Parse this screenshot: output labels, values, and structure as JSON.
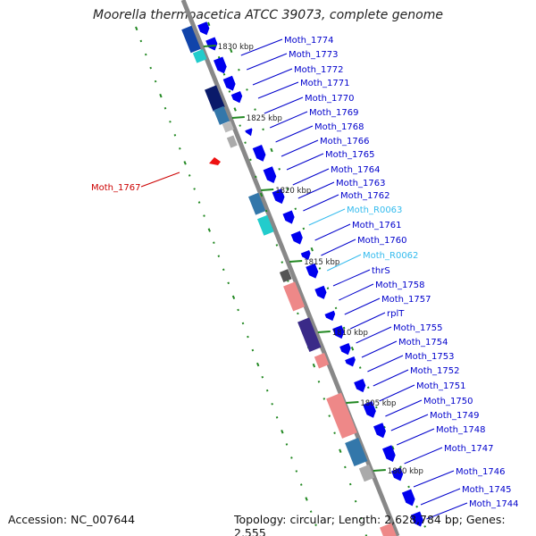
{
  "title": "Moorella thermoacetica ATCC 39073, complete genome",
  "footer": {
    "accession": "Accession: NC_007644",
    "topology": "Topology: circular; Length: 2,628,784 bp; Genes: 2,555"
  },
  "colors": {
    "label": "#0000cc",
    "rna_label": "#33bbee",
    "highlight_label": "#cc0000",
    "cds": "#0000ee",
    "green_marks": "#228822",
    "backbone": "#888888"
  },
  "kbp_markers": [
    "1830 kbp",
    "1825 kbp",
    "1820 kbp",
    "1815 kbp",
    "1810 kbp",
    "1805 kbp",
    "1800 kbp"
  ],
  "gene_labels": [
    {
      "text": "Moth_1774",
      "type": "cds"
    },
    {
      "text": "Moth_1773",
      "type": "cds"
    },
    {
      "text": "Moth_1772",
      "type": "cds"
    },
    {
      "text": "Moth_1771",
      "type": "cds"
    },
    {
      "text": "Moth_1770",
      "type": "cds"
    },
    {
      "text": "Moth_1769",
      "type": "cds"
    },
    {
      "text": "Moth_1768",
      "type": "cds"
    },
    {
      "text": "Moth_1766",
      "type": "cds"
    },
    {
      "text": "Moth_1765",
      "type": "cds"
    },
    {
      "text": "Moth_1764",
      "type": "cds"
    },
    {
      "text": "Moth_1763",
      "type": "cds"
    },
    {
      "text": "Moth_1762",
      "type": "cds"
    },
    {
      "text": "Moth_R0063",
      "type": "rna"
    },
    {
      "text": "Moth_1761",
      "type": "cds"
    },
    {
      "text": "Moth_1760",
      "type": "cds"
    },
    {
      "text": "Moth_R0062",
      "type": "rna"
    },
    {
      "text": "thrS",
      "type": "cds"
    },
    {
      "text": "Moth_1758",
      "type": "cds"
    },
    {
      "text": "Moth_1757",
      "type": "cds"
    },
    {
      "text": "rplT",
      "type": "cds"
    },
    {
      "text": "Moth_1755",
      "type": "cds"
    },
    {
      "text": "Moth_1754",
      "type": "cds"
    },
    {
      "text": "Moth_1753",
      "type": "cds"
    },
    {
      "text": "Moth_1752",
      "type": "cds"
    },
    {
      "text": "Moth_1751",
      "type": "cds"
    },
    {
      "text": "Moth_1750",
      "type": "cds"
    },
    {
      "text": "Moth_1749",
      "type": "cds"
    },
    {
      "text": "Moth_1748",
      "type": "cds"
    },
    {
      "text": "Moth_1747",
      "type": "cds"
    },
    {
      "text": "Moth_1746",
      "type": "cds"
    },
    {
      "text": "Moth_1745",
      "type": "cds"
    },
    {
      "text": "Moth_1744",
      "type": "cds"
    }
  ],
  "left_label": {
    "text": "Moth_1767",
    "type": "highlight"
  }
}
